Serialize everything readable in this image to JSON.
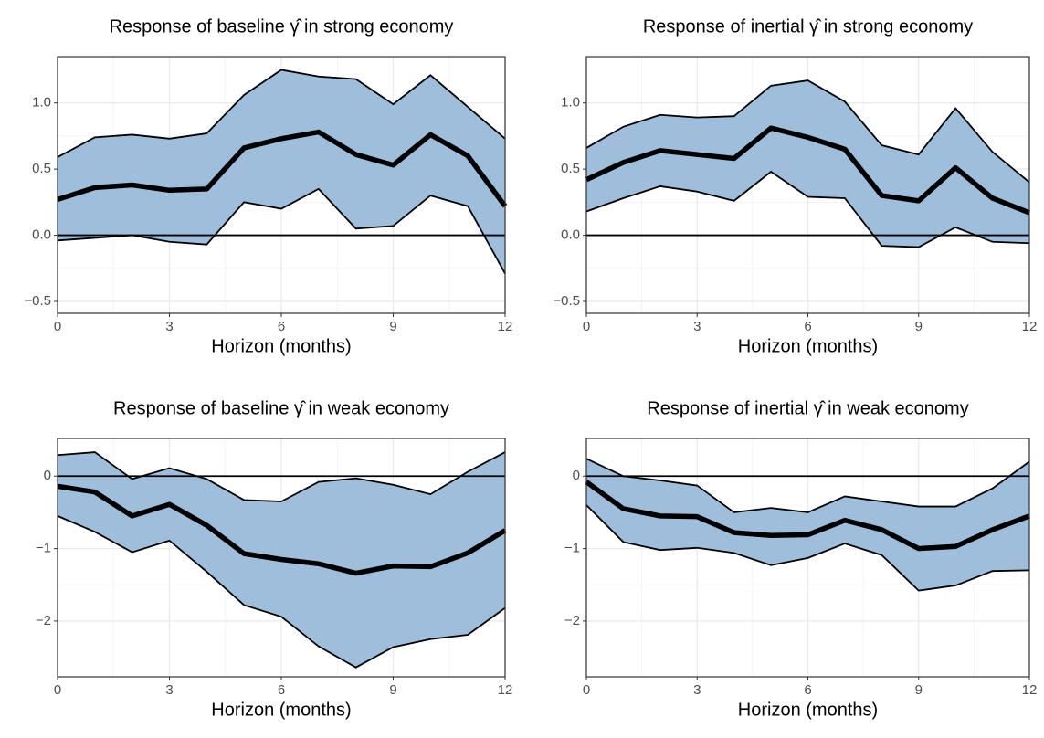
{
  "chart_data": [
    {
      "type": "line",
      "title": "Response of baseline γ̂ in strong economy",
      "x_label": "Horizon (months)",
      "x": [
        0,
        1,
        2,
        3,
        4,
        5,
        6,
        7,
        8,
        9,
        10,
        11,
        12
      ],
      "values": [
        0.27,
        0.36,
        0.38,
        0.34,
        0.35,
        0.66,
        0.73,
        0.78,
        0.61,
        0.53,
        0.76,
        0.6,
        0.22
      ],
      "upper": [
        0.59,
        0.74,
        0.76,
        0.73,
        0.77,
        1.06,
        1.25,
        1.2,
        1.18,
        0.99,
        1.21,
        0.97,
        0.73
      ],
      "lower": [
        -0.04,
        -0.02,
        0.0,
        -0.05,
        -0.07,
        0.25,
        0.2,
        0.35,
        0.05,
        0.07,
        0.3,
        0.22,
        -0.29
      ],
      "xlim": [
        0,
        12
      ],
      "xticks": [
        0,
        3,
        6,
        9,
        12
      ],
      "ylim": [
        -0.59,
        1.35
      ],
      "yticks": [
        {
          "value": -0.5,
          "label": "−0.5"
        },
        {
          "value": 0,
          "label": "0.0"
        },
        0.5,
        {
          "value": 1,
          "label": "1.0"
        }
      ],
      "hline": 0,
      "grid": true,
      "color": "#9fbedb",
      "line_color": "#000000"
    },
    {
      "type": "line",
      "title": "Response of inertial γ̂ in strong economy",
      "x_label": "Horizon (months)",
      "x": [
        0,
        1,
        2,
        3,
        4,
        5,
        6,
        7,
        8,
        9,
        10,
        11,
        12
      ],
      "values": [
        0.42,
        0.55,
        0.64,
        0.61,
        0.58,
        0.81,
        0.74,
        0.65,
        0.3,
        0.26,
        0.51,
        0.28,
        0.17
      ],
      "upper": [
        0.66,
        0.82,
        0.91,
        0.89,
        0.9,
        1.13,
        1.17,
        1.01,
        0.68,
        0.61,
        0.96,
        0.63,
        0.4
      ],
      "lower": [
        0.18,
        0.28,
        0.37,
        0.33,
        0.26,
        0.48,
        0.29,
        0.28,
        -0.08,
        -0.09,
        0.06,
        -0.05,
        -0.06
      ],
      "xlim": [
        0,
        12
      ],
      "xticks": [
        0,
        3,
        6,
        9,
        12
      ],
      "ylim": [
        -0.59,
        1.35
      ],
      "yticks": [
        {
          "value": -0.5,
          "label": "−0.5"
        },
        {
          "value": 0,
          "label": "0.0"
        },
        0.5,
        {
          "value": 1,
          "label": "1.0"
        }
      ],
      "hline": 0,
      "grid": true,
      "color": "#9fbedb",
      "line_color": "#000000"
    },
    {
      "type": "line",
      "title": "Response of baseline γ̂ in weak economy",
      "x_label": "Horizon (months)",
      "x": [
        0,
        1,
        2,
        3,
        4,
        5,
        6,
        7,
        8,
        9,
        10,
        11,
        12
      ],
      "values": [
        -0.14,
        -0.22,
        -0.55,
        -0.39,
        -0.68,
        -1.07,
        -1.15,
        -1.21,
        -1.34,
        -1.24,
        -1.25,
        -1.06,
        -0.75
      ],
      "upper": [
        0.29,
        0.33,
        -0.04,
        0.11,
        -0.04,
        -0.33,
        -0.35,
        -0.08,
        -0.03,
        -0.12,
        -0.25,
        0.06,
        0.33
      ],
      "lower": [
        -0.55,
        -0.77,
        -1.05,
        -0.89,
        -1.32,
        -1.78,
        -1.94,
        -2.35,
        -2.64,
        -2.36,
        -2.25,
        -2.19,
        -1.82
      ],
      "xlim": [
        0,
        12
      ],
      "xticks": [
        0,
        3,
        6,
        9,
        12
      ],
      "ylim": [
        -2.77,
        0.52
      ],
      "yticks": [
        {
          "value": -2,
          "label": "−2"
        },
        {
          "value": -1,
          "label": "−1"
        },
        0
      ],
      "hline": 0,
      "grid": true,
      "color": "#9fbedb",
      "line_color": "#000000"
    },
    {
      "type": "line",
      "title": "Response of inertial γ̂ in weak economy",
      "x_label": "Horizon (months)",
      "x": [
        0,
        1,
        2,
        3,
        4,
        5,
        6,
        7,
        8,
        9,
        10,
        11,
        12
      ],
      "values": [
        -0.08,
        -0.45,
        -0.55,
        -0.56,
        -0.78,
        -0.82,
        -0.81,
        -0.61,
        -0.74,
        -1.0,
        -0.97,
        -0.74,
        -0.55
      ],
      "upper": [
        0.24,
        0.0,
        -0.06,
        -0.13,
        -0.5,
        -0.44,
        -0.5,
        -0.28,
        -0.35,
        -0.42,
        -0.42,
        -0.17,
        0.2
      ],
      "lower": [
        -0.4,
        -0.91,
        -1.02,
        -0.99,
        -1.06,
        -1.23,
        -1.13,
        -0.93,
        -1.09,
        -1.58,
        -1.51,
        -1.31,
        -1.3
      ],
      "xlim": [
        0,
        12
      ],
      "xticks": [
        0,
        3,
        6,
        9,
        12
      ],
      "ylim": [
        -2.77,
        0.52
      ],
      "yticks": [
        {
          "value": -2,
          "label": "−2"
        },
        {
          "value": -1,
          "label": "−1"
        },
        0
      ],
      "hline": 0,
      "grid": true,
      "color": "#9fbedb",
      "line_color": "#000000"
    }
  ]
}
